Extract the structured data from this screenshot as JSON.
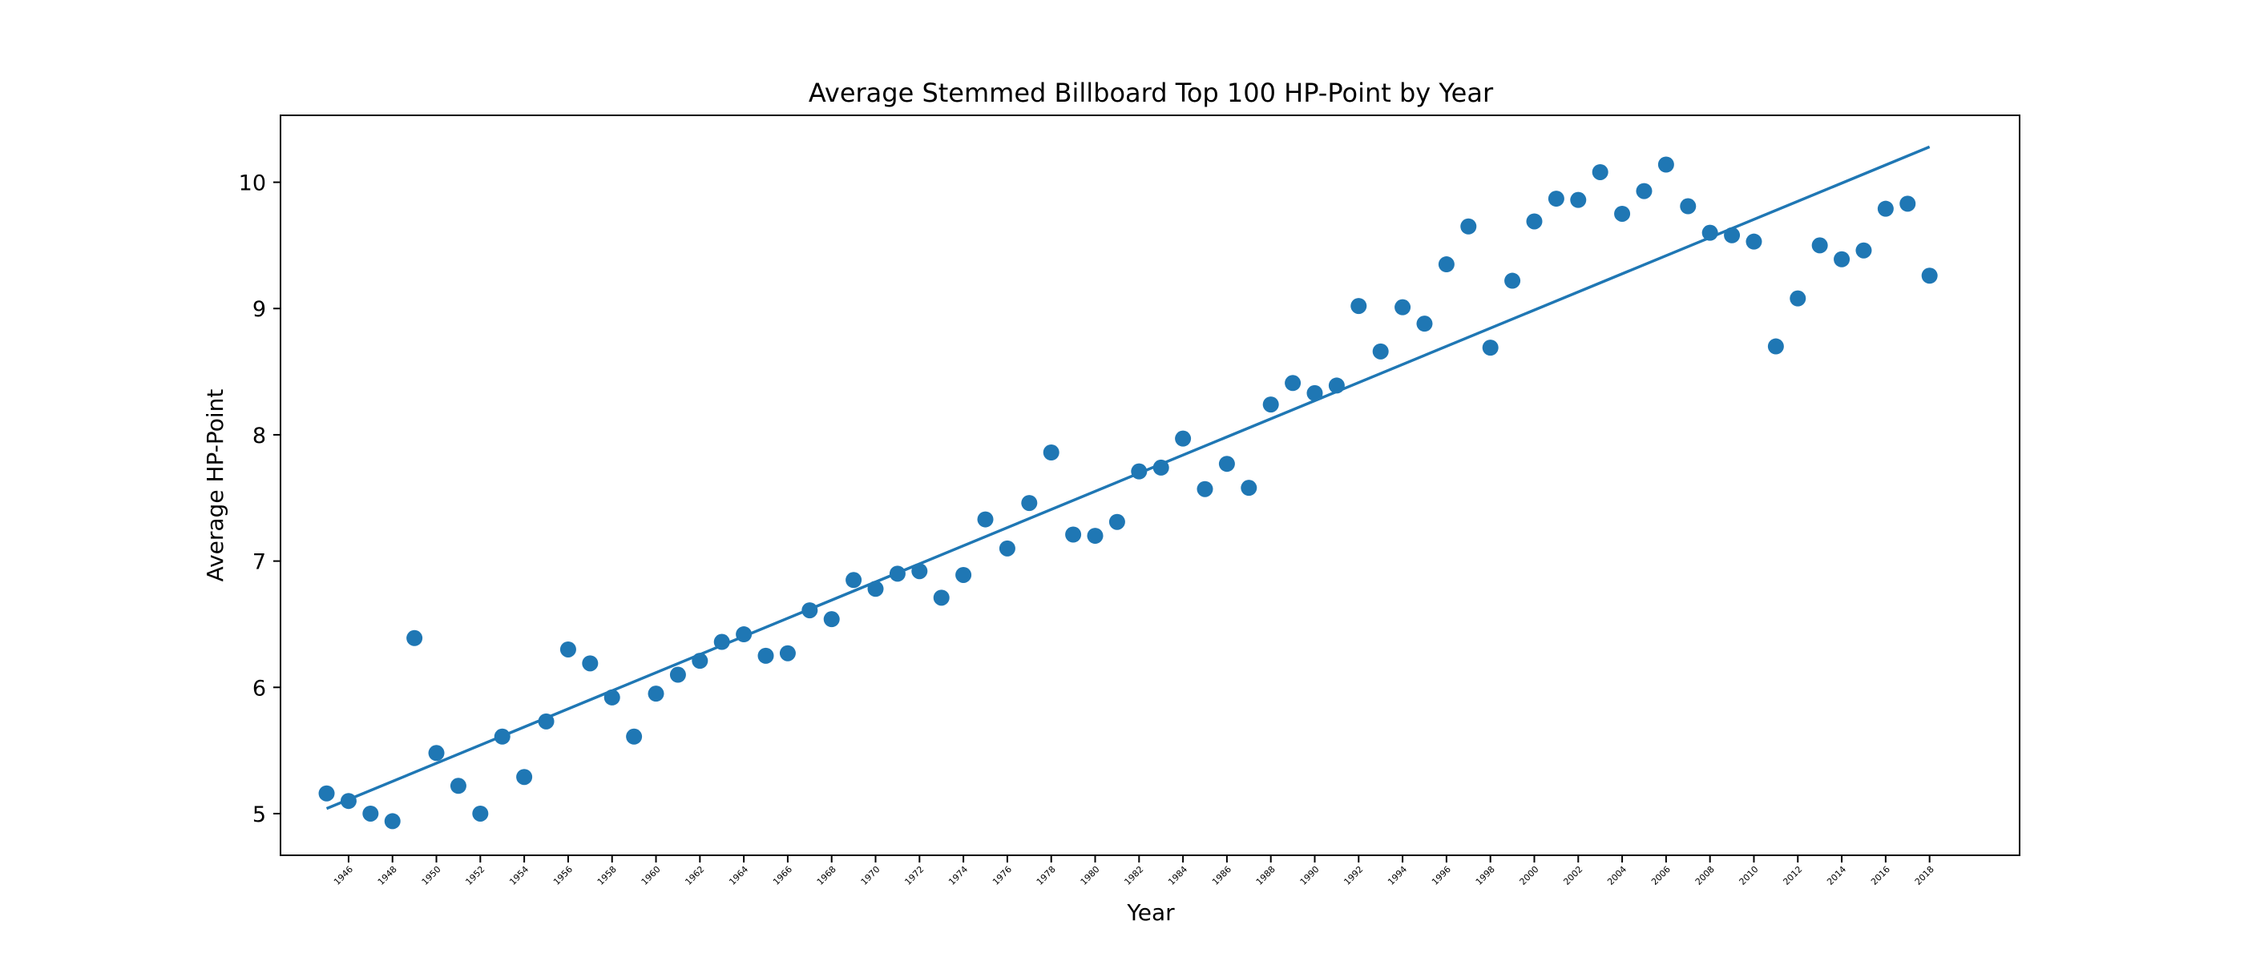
{
  "chart_data": {
    "type": "scatter",
    "title": "Average Stemmed Billboard Top 100 HP-Point by Year",
    "xlabel": "Year",
    "ylabel": "Average HP-Point",
    "xlim": [
      1942.9,
      2022.1
    ],
    "ylim": [
      4.67,
      10.53
    ],
    "yticks": [
      5,
      6,
      7,
      8,
      9,
      10
    ],
    "xticks": [
      1946,
      1948,
      1950,
      1952,
      1954,
      1956,
      1958,
      1960,
      1962,
      1964,
      1966,
      1968,
      1970,
      1972,
      1974,
      1976,
      1978,
      1980,
      1982,
      1984,
      1986,
      1988,
      1990,
      1992,
      1994,
      1996,
      1998,
      2000,
      2002,
      2004,
      2006,
      2008,
      2010,
      2012,
      2014,
      2016,
      2018
    ],
    "grid": false,
    "legend": "none",
    "color": "#1f77b4",
    "x": [
      1945,
      1946,
      1947,
      1948,
      1949,
      1950,
      1951,
      1952,
      1953,
      1954,
      1955,
      1956,
      1957,
      1958,
      1959,
      1960,
      1961,
      1962,
      1963,
      1964,
      1965,
      1966,
      1967,
      1968,
      1969,
      1970,
      1971,
      1972,
      1973,
      1974,
      1975,
      1976,
      1977,
      1978,
      1979,
      1980,
      1981,
      1982,
      1983,
      1984,
      1985,
      1986,
      1987,
      1988,
      1989,
      1990,
      1991,
      1992,
      1993,
      1994,
      1995,
      1996,
      1997,
      1998,
      1999,
      2000,
      2001,
      2002,
      2003,
      2004,
      2005,
      2006,
      2007,
      2008,
      2009,
      2010,
      2011,
      2012,
      2013,
      2014,
      2015,
      2016,
      2017,
      2018
    ],
    "y": [
      5.16,
      5.1,
      5.0,
      4.94,
      6.39,
      5.48,
      5.22,
      5.0,
      5.61,
      5.29,
      5.73,
      6.3,
      6.19,
      5.92,
      5.61,
      5.95,
      6.1,
      6.21,
      6.36,
      6.42,
      6.25,
      6.27,
      6.61,
      6.54,
      6.85,
      6.78,
      6.9,
      6.92,
      6.71,
      6.89,
      7.33,
      7.1,
      7.46,
      7.86,
      7.21,
      7.2,
      7.31,
      7.71,
      7.74,
      7.97,
      7.57,
      7.77,
      7.58,
      8.24,
      8.41,
      8.33,
      8.39,
      9.02,
      8.66,
      9.01,
      8.88,
      9.35,
      9.65,
      8.69,
      9.22,
      9.69,
      9.87,
      9.86,
      10.08,
      9.75,
      9.93,
      10.14,
      9.81,
      9.6,
      9.58,
      9.53,
      8.7,
      9.08,
      9.5,
      9.39,
      9.46,
      9.79,
      9.83,
      9.26
    ],
    "trend_line": {
      "x": [
        1945,
        2018
      ],
      "y": [
        5.04,
        10.28
      ]
    }
  }
}
